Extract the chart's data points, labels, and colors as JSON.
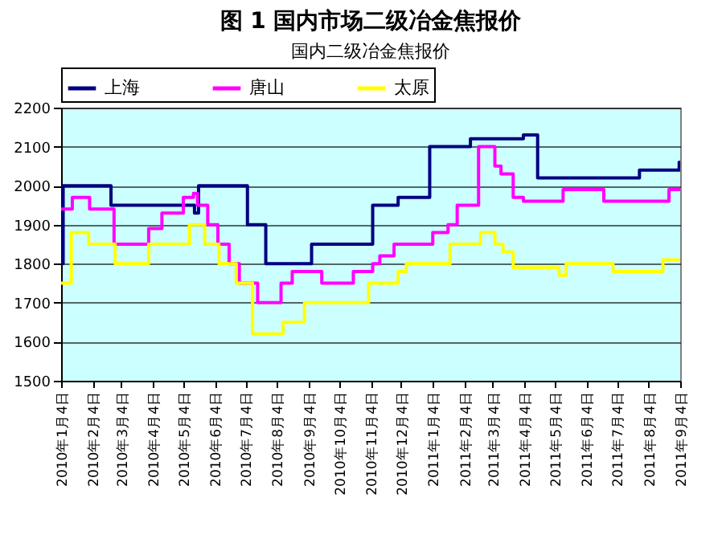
{
  "chart_data": {
    "type": "step",
    "title": "图 1  国内市场二级冶金焦报价",
    "subtitle": "国内二级冶金焦报价",
    "ylim": [
      1500,
      2200
    ],
    "yticks": [
      1500,
      1600,
      1700,
      1800,
      1900,
      2000,
      2100,
      2200
    ],
    "xlim": [
      "2010-01-04",
      "2011-09-04"
    ],
    "xticks": [
      {
        "value": "2010-01-04",
        "label": "2010年1月4日"
      },
      {
        "value": "2010-02-04",
        "label": "2010年2月4日"
      },
      {
        "value": "2010-03-04",
        "label": "2010年3月4日"
      },
      {
        "value": "2010-04-04",
        "label": "2010年4月4日"
      },
      {
        "value": "2010-05-04",
        "label": "2010年5月4日"
      },
      {
        "value": "2010-06-04",
        "label": "2010年6月4日"
      },
      {
        "value": "2010-07-04",
        "label": "2010年7月4日"
      },
      {
        "value": "2010-08-04",
        "label": "2010年8月4日"
      },
      {
        "value": "2010-09-04",
        "label": "2010年9月4日"
      },
      {
        "value": "2010-10-04",
        "label": "2010年10月4日"
      },
      {
        "value": "2010-11-04",
        "label": "2010年11月4日"
      },
      {
        "value": "2010-12-04",
        "label": "2010年12月4日"
      },
      {
        "value": "2011-01-04",
        "label": "2011年1月4日"
      },
      {
        "value": "2011-02-04",
        "label": "2011年2月4日"
      },
      {
        "value": "2011-03-04",
        "label": "2011年3月4日"
      },
      {
        "value": "2011-04-04",
        "label": "2011年4月4日"
      },
      {
        "value": "2011-05-04",
        "label": "2011年5月4日"
      },
      {
        "value": "2011-06-04",
        "label": "2011年6月4日"
      },
      {
        "value": "2011-07-04",
        "label": "2011年7月4日"
      },
      {
        "value": "2011-08-04",
        "label": "2011年8月4日"
      },
      {
        "value": "2011-09-04",
        "label": "2011年9月4日"
      }
    ],
    "grid": "y",
    "legend": "top",
    "series": [
      {
        "name": "上海",
        "color": "#000080",
        "x": [
          "2010-01-04",
          "2010-01-06",
          "2010-02-22",
          "2010-05-15",
          "2010-05-19",
          "2010-07-06",
          "2010-07-24",
          "2010-09-07",
          "2010-11-06",
          "2010-12-01",
          "2011-01-01",
          "2011-02-10",
          "2011-04-03",
          "2011-04-17",
          "2011-07-26",
          "2011-09-03",
          "2011-09-04"
        ],
        "values": [
          1800,
          2000,
          1950,
          1930,
          2000,
          1900,
          1800,
          1850,
          1950,
          1970,
          2100,
          2120,
          2130,
          2020,
          2040,
          2060,
          2060
        ]
      },
      {
        "name": "唐山",
        "color": "#ff00ff",
        "x": [
          "2010-01-04",
          "2010-01-15",
          "2010-02-01",
          "2010-02-25",
          "2010-03-31",
          "2010-04-13",
          "2010-05-04",
          "2010-05-14",
          "2010-05-18",
          "2010-05-28",
          "2010-06-07",
          "2010-06-18",
          "2010-06-28",
          "2010-07-16",
          "2010-08-08",
          "2010-08-19",
          "2010-09-17",
          "2010-10-18",
          "2010-11-06",
          "2010-11-13",
          "2010-11-27",
          "2011-01-04",
          "2011-01-19",
          "2011-01-28",
          "2011-02-18",
          "2011-03-06",
          "2011-03-12",
          "2011-03-24",
          "2011-04-03",
          "2011-05-12",
          "2011-06-21",
          "2011-08-24",
          "2011-09-04"
        ],
        "values": [
          1940,
          1970,
          1940,
          1850,
          1890,
          1930,
          1970,
          1980,
          1950,
          1900,
          1850,
          1800,
          1750,
          1700,
          1750,
          1780,
          1750,
          1780,
          1800,
          1820,
          1850,
          1880,
          1900,
          1950,
          2100,
          2050,
          2030,
          1970,
          1960,
          1990,
          1960,
          1990,
          1990
        ]
      },
      {
        "name": "太原",
        "color": "#ffff00",
        "x": [
          "2010-01-04",
          "2010-01-14",
          "2010-01-31",
          "2010-02-26",
          "2010-03-31",
          "2010-05-10",
          "2010-05-25",
          "2010-06-08",
          "2010-06-25",
          "2010-07-11",
          "2010-08-10",
          "2010-08-31",
          "2010-11-02",
          "2010-12-01",
          "2010-12-09",
          "2011-01-21",
          "2011-02-20",
          "2011-03-06",
          "2011-03-14",
          "2011-03-24",
          "2011-05-08",
          "2011-05-15",
          "2011-06-30",
          "2011-08-18",
          "2011-09-04"
        ],
        "values": [
          1750,
          1880,
          1850,
          1800,
          1850,
          1900,
          1850,
          1800,
          1750,
          1620,
          1650,
          1700,
          1750,
          1780,
          1800,
          1850,
          1880,
          1850,
          1830,
          1790,
          1770,
          1800,
          1780,
          1810,
          1810
        ]
      }
    ]
  }
}
